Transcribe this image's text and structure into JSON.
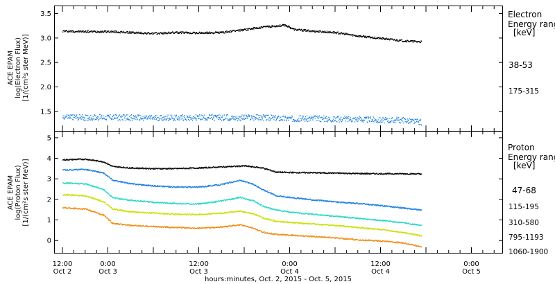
{
  "chart_data": [
    {
      "type": "scatter",
      "panel": "electron",
      "ylabel_lines": [
        "ACE EPAM",
        "log(Electron Flux)",
        "[1/(cm²s ster MeV)]"
      ],
      "ylim": [
        1.1,
        3.65
      ],
      "yticks": [
        1.5,
        2.0,
        2.5,
        3.0,
        3.5
      ],
      "ytick_labels": [
        "1.5",
        "2.0",
        "2.5",
        "3.0",
        "3.5"
      ],
      "legend": {
        "title_lines": [
          "Electron",
          "Energy range",
          "[keV]"
        ]
      },
      "series": [
        {
          "name": "38-53",
          "color": "#000000",
          "points": [
            [
              0,
              3.15
            ],
            [
              0.25,
              3.14
            ],
            [
              0.5,
              3.14
            ],
            [
              0.75,
              3.12
            ],
            [
              1.0,
              3.1
            ],
            [
              1.25,
              3.12
            ],
            [
              1.5,
              3.11
            ],
            [
              1.75,
              3.12
            ],
            [
              2.0,
              3.18
            ],
            [
              2.25,
              3.24
            ],
            [
              2.45,
              3.27
            ],
            [
              2.55,
              3.18
            ],
            [
              2.75,
              3.15
            ],
            [
              3.0,
              3.12
            ],
            [
              3.25,
              3.05
            ],
            [
              3.5,
              3.0
            ],
            [
              3.75,
              2.95
            ],
            [
              3.95,
              2.93
            ]
          ]
        },
        {
          "name": "175-315",
          "color": "#1a7fe0",
          "points": [
            [
              0,
              1.4
            ],
            [
              0.25,
              1.38
            ],
            [
              0.5,
              1.39
            ],
            [
              0.75,
              1.38
            ],
            [
              1.0,
              1.37
            ],
            [
              1.25,
              1.38
            ],
            [
              1.5,
              1.38
            ],
            [
              1.75,
              1.38
            ],
            [
              2.0,
              1.38
            ],
            [
              2.25,
              1.38
            ],
            [
              2.5,
              1.36
            ],
            [
              2.75,
              1.36
            ],
            [
              3.0,
              1.35
            ],
            [
              3.25,
              1.35
            ],
            [
              3.5,
              1.33
            ],
            [
              3.75,
              1.33
            ],
            [
              3.95,
              1.28
            ]
          ]
        }
      ]
    },
    {
      "type": "scatter",
      "panel": "proton",
      "ylabel_lines": [
        "ACE EPAM",
        "log(Proton Flux)",
        "[1/(cm²s ster MeV)]"
      ],
      "ylim": [
        -0.6,
        5.3
      ],
      "yticks": [
        0,
        1,
        2,
        3,
        4,
        5
      ],
      "ytick_labels": [
        "0",
        "1",
        "2",
        "3",
        "4",
        "5"
      ],
      "xlabel": "hours:minutes, Oct.  2, 2015 - Oct.  5, 2015",
      "x_ticks": [
        {
          "x": 0,
          "line1": "12:00",
          "line2": "Oct 2"
        },
        {
          "x": 0.5,
          "line1": "0:00",
          "line2": "Oct 3"
        },
        {
          "x": 1.5,
          "line1": "12:00",
          "line2": "Oct 3"
        },
        {
          "x": 2.5,
          "line1": "0:00",
          "line2": "Oct 4"
        },
        {
          "x": 3.5,
          "line1": "12:00",
          "line2": "Oct 4"
        },
        {
          "x": 4.5,
          "line1": "0:00",
          "line2": "Oct 5"
        }
      ],
      "legend": {
        "title_lines": [
          "Proton",
          "Energy range",
          "[keV]"
        ]
      },
      "series": [
        {
          "name": "47-68",
          "color": "#000000",
          "points": [
            [
              0,
              3.95
            ],
            [
              0.25,
              3.98
            ],
            [
              0.45,
              3.85
            ],
            [
              0.55,
              3.62
            ],
            [
              0.75,
              3.55
            ],
            [
              1.0,
              3.52
            ],
            [
              1.25,
              3.52
            ],
            [
              1.5,
              3.55
            ],
            [
              1.75,
              3.6
            ],
            [
              2.0,
              3.65
            ],
            [
              2.2,
              3.55
            ],
            [
              2.35,
              3.35
            ],
            [
              2.5,
              3.33
            ],
            [
              2.75,
              3.32
            ],
            [
              3.0,
              3.3
            ],
            [
              3.25,
              3.28
            ],
            [
              3.5,
              3.27
            ],
            [
              3.75,
              3.27
            ],
            [
              3.95,
              3.26
            ]
          ]
        },
        {
          "name": "115-195",
          "color": "#1a7fe0",
          "points": [
            [
              0,
              3.45
            ],
            [
              0.25,
              3.48
            ],
            [
              0.45,
              3.3
            ],
            [
              0.55,
              2.95
            ],
            [
              0.75,
              2.78
            ],
            [
              1.0,
              2.68
            ],
            [
              1.25,
              2.62
            ],
            [
              1.5,
              2.62
            ],
            [
              1.75,
              2.75
            ],
            [
              1.95,
              2.95
            ],
            [
              2.1,
              2.75
            ],
            [
              2.2,
              2.5
            ],
            [
              2.35,
              2.2
            ],
            [
              2.5,
              2.12
            ],
            [
              2.75,
              2.0
            ],
            [
              3.0,
              1.9
            ],
            [
              3.25,
              1.82
            ],
            [
              3.5,
              1.72
            ],
            [
              3.75,
              1.6
            ],
            [
              3.95,
              1.5
            ]
          ]
        },
        {
          "name": "310-580",
          "color": "#22d8c8",
          "points": [
            [
              0,
              2.82
            ],
            [
              0.25,
              2.78
            ],
            [
              0.45,
              2.5
            ],
            [
              0.55,
              2.1
            ],
            [
              0.75,
              1.98
            ],
            [
              1.0,
              1.88
            ],
            [
              1.25,
              1.82
            ],
            [
              1.5,
              1.8
            ],
            [
              1.75,
              1.95
            ],
            [
              1.95,
              2.12
            ],
            [
              2.1,
              1.95
            ],
            [
              2.2,
              1.7
            ],
            [
              2.35,
              1.5
            ],
            [
              2.5,
              1.4
            ],
            [
              2.75,
              1.3
            ],
            [
              3.0,
              1.2
            ],
            [
              3.25,
              1.1
            ],
            [
              3.5,
              1.0
            ],
            [
              3.75,
              0.88
            ],
            [
              3.95,
              0.75
            ]
          ]
        },
        {
          "name": "795-1193",
          "color": "#c8e000",
          "points": [
            [
              0,
              2.25
            ],
            [
              0.25,
              2.2
            ],
            [
              0.45,
              1.9
            ],
            [
              0.55,
              1.55
            ],
            [
              0.75,
              1.42
            ],
            [
              1.0,
              1.35
            ],
            [
              1.25,
              1.3
            ],
            [
              1.5,
              1.28
            ],
            [
              1.75,
              1.35
            ],
            [
              1.95,
              1.45
            ],
            [
              2.1,
              1.32
            ],
            [
              2.2,
              1.12
            ],
            [
              2.35,
              0.95
            ],
            [
              2.5,
              0.9
            ],
            [
              2.75,
              0.82
            ],
            [
              3.0,
              0.75
            ],
            [
              3.25,
              0.65
            ],
            [
              3.5,
              0.55
            ],
            [
              3.75,
              0.4
            ],
            [
              3.95,
              0.25
            ]
          ]
        },
        {
          "name": "1060-1900",
          "color": "#f08a10",
          "points": [
            [
              0,
              1.62
            ],
            [
              0.25,
              1.55
            ],
            [
              0.45,
              1.25
            ],
            [
              0.55,
              0.85
            ],
            [
              0.75,
              0.75
            ],
            [
              1.0,
              0.7
            ],
            [
              1.25,
              0.65
            ],
            [
              1.5,
              0.62
            ],
            [
              1.75,
              0.68
            ],
            [
              1.95,
              0.78
            ],
            [
              2.1,
              0.62
            ],
            [
              2.2,
              0.42
            ],
            [
              2.35,
              0.32
            ],
            [
              2.5,
              0.28
            ],
            [
              2.75,
              0.22
            ],
            [
              3.0,
              0.15
            ],
            [
              3.25,
              0.05
            ],
            [
              3.5,
              0.0
            ],
            [
              3.75,
              -0.1
            ],
            [
              3.95,
              -0.28
            ]
          ]
        }
      ]
    }
  ]
}
